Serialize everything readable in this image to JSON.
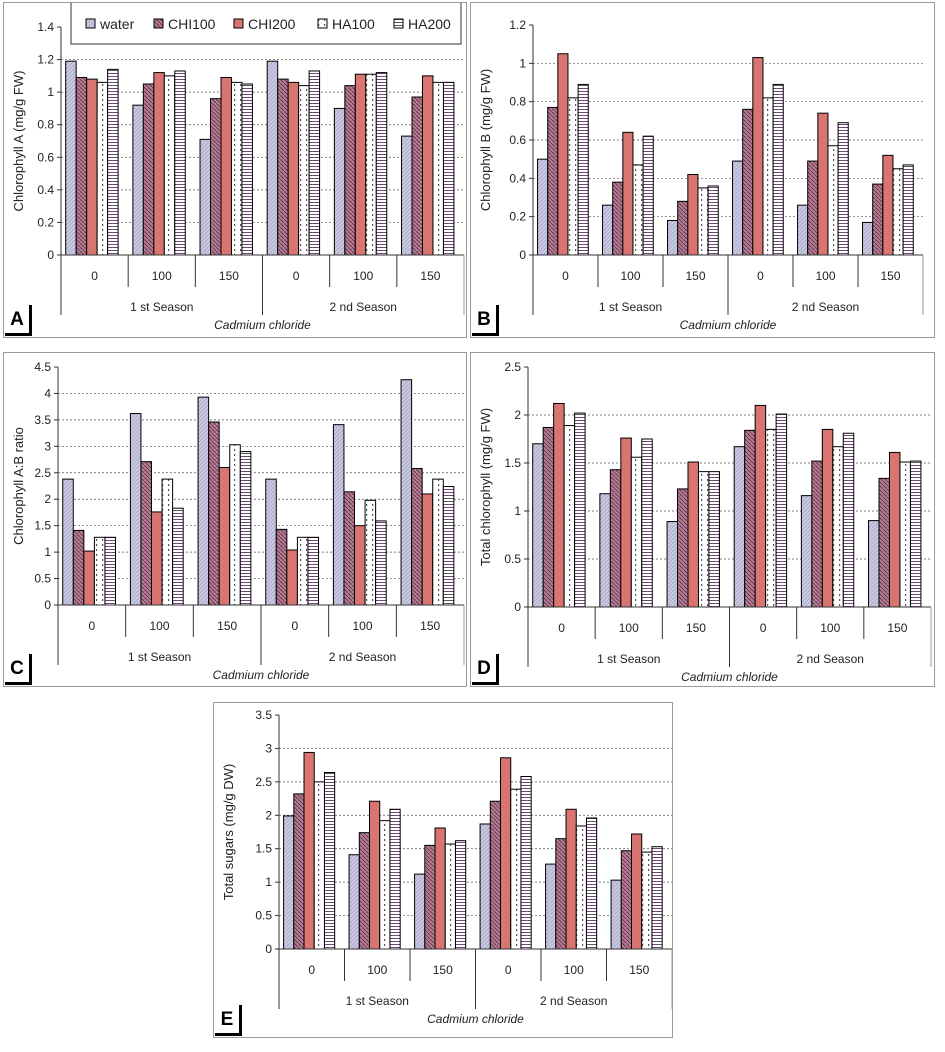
{
  "legend_series": [
    "water",
    "CHI100",
    "CHI200",
    "HA100",
    "HA200"
  ],
  "series_colors": {
    "water": "#c9c9e2",
    "CHI100": "#b57f96",
    "CHI200": "#d97570",
    "HA100": "#ffffff",
    "HA200": "#ffffff"
  },
  "chart_data": [
    {
      "type": "bar",
      "panel_label": "A",
      "ylabel": "Chlorophyll A (mg/g FW)",
      "xlabel": "Cadmium chloride",
      "ylim": [
        0,
        1.4
      ],
      "ystep": 0.2,
      "grid": true,
      "legend": "top",
      "categories": [
        "0",
        "100",
        "150",
        "0",
        "100",
        "150"
      ],
      "groups": [
        "1 st Season",
        "2 nd Season"
      ],
      "series": [
        {
          "name": "water",
          "values": [
            1.19,
            0.92,
            0.71,
            1.19,
            0.9,
            0.73
          ]
        },
        {
          "name": "CHI100",
          "values": [
            1.09,
            1.05,
            0.96,
            1.08,
            1.04,
            0.97
          ]
        },
        {
          "name": "CHI200",
          "values": [
            1.08,
            1.12,
            1.09,
            1.06,
            1.11,
            1.1
          ]
        },
        {
          "name": "HA100",
          "values": [
            1.06,
            1.1,
            1.06,
            1.04,
            1.11,
            1.06
          ]
        },
        {
          "name": "HA200",
          "values": [
            1.14,
            1.13,
            1.05,
            1.13,
            1.12,
            1.06
          ]
        }
      ]
    },
    {
      "type": "bar",
      "panel_label": "B",
      "ylabel": "Chlorophyll B (mg/g FW)",
      "xlabel": "Cadmium chloride",
      "ylim": [
        0,
        1.2
      ],
      "ystep": 0.2,
      "grid": true,
      "categories": [
        "0",
        "100",
        "150",
        "0",
        "100",
        "150"
      ],
      "groups": [
        "1 st Season",
        "2 nd Season"
      ],
      "series": [
        {
          "name": "water",
          "values": [
            0.5,
            0.26,
            0.18,
            0.49,
            0.26,
            0.17
          ]
        },
        {
          "name": "CHI100",
          "values": [
            0.77,
            0.38,
            0.28,
            0.76,
            0.49,
            0.37
          ]
        },
        {
          "name": "CHI200",
          "values": [
            1.05,
            0.64,
            0.42,
            1.03,
            0.74,
            0.52
          ]
        },
        {
          "name": "HA100",
          "values": [
            0.82,
            0.47,
            0.35,
            0.82,
            0.57,
            0.45
          ]
        },
        {
          "name": "HA200",
          "values": [
            0.89,
            0.62,
            0.36,
            0.89,
            0.69,
            0.47
          ]
        }
      ]
    },
    {
      "type": "bar",
      "panel_label": "C",
      "ylabel": "Chlorophyll A:B ratio",
      "xlabel": "Cadmium chloride",
      "ylim": [
        0,
        4.5
      ],
      "ystep": 0.5,
      "grid": true,
      "categories": [
        "0",
        "100",
        "150",
        "0",
        "100",
        "150"
      ],
      "groups": [
        "1 st Season",
        "2 nd Season"
      ],
      "series": [
        {
          "name": "water",
          "values": [
            2.38,
            3.62,
            3.93,
            2.38,
            3.41,
            4.26
          ]
        },
        {
          "name": "CHI100",
          "values": [
            1.41,
            2.71,
            3.46,
            1.43,
            2.14,
            2.58
          ]
        },
        {
          "name": "CHI200",
          "values": [
            1.02,
            1.76,
            2.6,
            1.04,
            1.5,
            2.1
          ]
        },
        {
          "name": "HA100",
          "values": [
            1.28,
            2.38,
            3.03,
            1.28,
            1.98,
            2.38
          ]
        },
        {
          "name": "HA200",
          "values": [
            1.28,
            1.83,
            2.9,
            1.28,
            1.59,
            2.24
          ]
        }
      ]
    },
    {
      "type": "bar",
      "panel_label": "D",
      "ylabel": "Total chlorophyll (mg/g FW)",
      "xlabel": "Cadmium chloride",
      "ylim": [
        0,
        2.5
      ],
      "ystep": 0.5,
      "grid": true,
      "categories": [
        "0",
        "100",
        "150",
        "0",
        "100",
        "150"
      ],
      "groups": [
        "1 st Season",
        "2 nd Season"
      ],
      "series": [
        {
          "name": "water",
          "values": [
            1.7,
            1.18,
            0.89,
            1.67,
            1.16,
            0.9
          ]
        },
        {
          "name": "CHI100",
          "values": [
            1.87,
            1.43,
            1.23,
            1.84,
            1.52,
            1.34
          ]
        },
        {
          "name": "CHI200",
          "values": [
            2.12,
            1.76,
            1.51,
            2.1,
            1.85,
            1.61
          ]
        },
        {
          "name": "HA100",
          "values": [
            1.89,
            1.56,
            1.41,
            1.85,
            1.67,
            1.51
          ]
        },
        {
          "name": "HA200",
          "values": [
            2.02,
            1.75,
            1.41,
            2.01,
            1.81,
            1.52
          ]
        }
      ]
    },
    {
      "type": "bar",
      "panel_label": "E",
      "ylabel": "Total sugars (mg/g DW)",
      "xlabel": "Cadmium chloride",
      "ylim": [
        0,
        3.5
      ],
      "ystep": 0.5,
      "grid": true,
      "categories": [
        "0",
        "100",
        "150",
        "0",
        "100",
        "150"
      ],
      "groups": [
        "1 st Season",
        "2 nd Season"
      ],
      "series": [
        {
          "name": "water",
          "values": [
            1.99,
            1.41,
            1.12,
            1.87,
            1.27,
            1.03
          ]
        },
        {
          "name": "CHI100",
          "values": [
            2.32,
            1.74,
            1.55,
            2.21,
            1.65,
            1.47
          ]
        },
        {
          "name": "CHI200",
          "values": [
            2.94,
            2.21,
            1.81,
            2.86,
            2.09,
            1.72
          ]
        },
        {
          "name": "HA100",
          "values": [
            2.5,
            1.92,
            1.57,
            2.39,
            1.84,
            1.45
          ]
        },
        {
          "name": "HA200",
          "values": [
            2.64,
            2.09,
            1.62,
            2.58,
            1.96,
            1.53
          ]
        }
      ]
    }
  ]
}
